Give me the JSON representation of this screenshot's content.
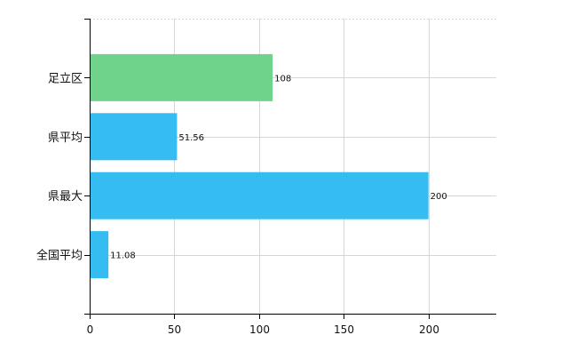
{
  "chart_data": {
    "type": "bar",
    "orientation": "horizontal",
    "categories": [
      "足立区",
      "県平均",
      "県最大",
      "全国平均"
    ],
    "values": [
      108,
      51.56,
      200,
      11.08
    ],
    "value_labels": [
      "108",
      "51.56",
      "200",
      "11.08"
    ],
    "bar_colors": [
      "#6fd38c",
      "#35bdf2",
      "#35bdf2",
      "#35bdf2"
    ],
    "xlim": [
      0,
      240
    ],
    "xticks": [
      0,
      50,
      100,
      150,
      200
    ],
    "xtick_labels": [
      "0",
      "50",
      "100",
      "150",
      "200"
    ],
    "grid": true,
    "legend": "none",
    "colors": {
      "grid": "#d6d6d6",
      "axis": "#000000"
    }
  }
}
